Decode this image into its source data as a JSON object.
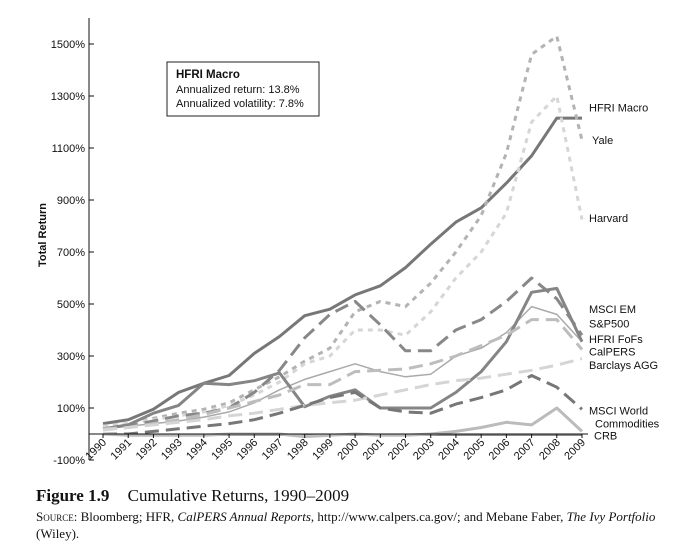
{
  "figure": {
    "label": "Figure",
    "number": "1.9",
    "title": "Cumulative Returns, 1990–2009",
    "source_label": "Source:",
    "source_text_1": "Bloomberg; HFR,",
    "source_italic_1": "CalPERS Annual Reports",
    "source_text_2": ", http://www.calpers.ca.gov/; and Mebane Faber,",
    "source_italic_2": "The Ivy Portfolio",
    "source_text_3": "(Wiley)."
  },
  "chart_data": {
    "type": "line",
    "title": "",
    "xlabel": "",
    "ylabel": "Total Return",
    "x": [
      "1990",
      "1991",
      "1992",
      "1993",
      "1994",
      "1995",
      "1996",
      "1997",
      "1998",
      "1999",
      "2000",
      "2001",
      "2002",
      "2003",
      "2004",
      "2005",
      "2006",
      "2007",
      "2008",
      "2009"
    ],
    "ylim": [
      -100,
      1600
    ],
    "yticks": [
      -100,
      100,
      300,
      500,
      700,
      900,
      1100,
      1300,
      1500
    ],
    "ytick_labels": [
      "-100%",
      "100%",
      "300%",
      "500%",
      "700%",
      "900%",
      "1100%",
      "1300%",
      "1500%"
    ],
    "grid": false,
    "annotation": {
      "title": "HFRI Macro",
      "lines": [
        "Annualized return: 13.8%",
        "Annualized volatility: 7.8%"
      ]
    },
    "series": [
      {
        "name": "HFRI Macro",
        "color": "#777777",
        "dash": "solid",
        "width": 3,
        "values": [
          40,
          55,
          95,
          160,
          195,
          225,
          310,
          375,
          455,
          480,
          535,
          570,
          640,
          730,
          815,
          870,
          965,
          1070,
          1215,
          1215
        ]
      },
      {
        "name": "Yale",
        "color": "#b3b3b3",
        "dash": "short",
        "width": 3,
        "values": [
          30,
          40,
          60,
          80,
          95,
          120,
          170,
          220,
          280,
          330,
          470,
          510,
          490,
          580,
          700,
          840,
          1080,
          1460,
          1530,
          1130
        ]
      },
      {
        "name": "Harvard",
        "color": "#d6d6d6",
        "dash": "short",
        "width": 3,
        "values": [
          30,
          40,
          55,
          70,
          85,
          110,
          150,
          200,
          270,
          300,
          400,
          400,
          380,
          470,
          600,
          700,
          850,
          1200,
          1300,
          825
        ]
      },
      {
        "name": "MSCI EM",
        "color": "#888888",
        "dash": "long",
        "width": 3,
        "values": [
          20,
          30,
          50,
          70,
          80,
          100,
          160,
          245,
          370,
          460,
          510,
          420,
          320,
          320,
          400,
          440,
          510,
          600,
          520,
          380
        ]
      },
      {
        "name": "S&P500",
        "color": "#aaaaaa",
        "dash": "solid",
        "width": 1.5,
        "values": [
          20,
          30,
          40,
          50,
          65,
          85,
          120,
          170,
          210,
          240,
          270,
          240,
          220,
          230,
          300,
          330,
          390,
          490,
          460,
          355
        ]
      },
      {
        "name": "HFRI FoFs",
        "color": "#858585",
        "dash": "solid",
        "width": 3,
        "values": [
          20,
          35,
          80,
          110,
          195,
          190,
          205,
          235,
          105,
          145,
          170,
          100,
          100,
          100,
          160,
          240,
          355,
          545,
          560,
          355
        ]
      },
      {
        "name": "CalPERS",
        "color": "#bdbdbd",
        "dash": "long",
        "width": 3,
        "values": [
          20,
          25,
          40,
          55,
          75,
          100,
          125,
          150,
          190,
          190,
          240,
          245,
          250,
          270,
          300,
          340,
          380,
          440,
          440,
          325
        ]
      },
      {
        "name": "Barclays AGG",
        "color": "#d5d5d5",
        "dash": "long",
        "width": 3,
        "values": [
          15,
          25,
          35,
          45,
          55,
          70,
          80,
          95,
          110,
          120,
          130,
          150,
          170,
          190,
          205,
          215,
          230,
          245,
          265,
          290
        ]
      },
      {
        "name": "MSCI World",
        "color": "#777777",
        "dash": "long",
        "width": 3,
        "values": [
          0,
          0,
          10,
          20,
          30,
          40,
          55,
          80,
          110,
          140,
          160,
          100,
          85,
          80,
          115,
          140,
          170,
          225,
          180,
          95
        ]
      },
      {
        "name": "Commodities",
        "color": "#8c8c8c",
        "dash": "solid",
        "width": 1.5,
        "values": [
          0,
          -5,
          -5,
          -5,
          -5,
          -5,
          -5,
          -5,
          -5,
          -5,
          -5,
          -5,
          -5,
          -5,
          -5,
          -5,
          -5,
          -5,
          -5,
          -5
        ]
      },
      {
        "name": "CRB",
        "color": "#bbbbbb",
        "dash": "solid",
        "width": 3,
        "values": [
          0,
          -5,
          -5,
          -5,
          -5,
          0,
          0,
          0,
          -10,
          -5,
          0,
          -5,
          -5,
          0,
          10,
          25,
          45,
          35,
          100,
          10
        ]
      }
    ]
  }
}
